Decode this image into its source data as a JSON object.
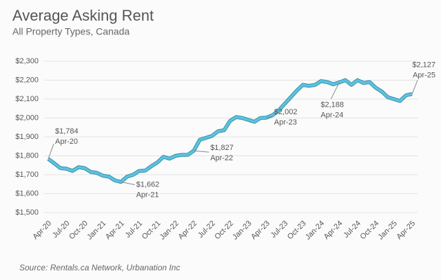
{
  "chart_data": {
    "type": "line",
    "title": "Average Asking Rent",
    "subtitle": "All Property Types, Canada",
    "source": "Source: Rentals.ca Network, Urbanation Inc",
    "categories": [
      "Apr-20",
      null,
      null,
      "Jul-20",
      null,
      null,
      "Oct-20",
      null,
      null,
      "Jan-21",
      null,
      null,
      "Apr-21",
      null,
      null,
      "Jul-21",
      null,
      null,
      "Oct-21",
      null,
      null,
      "Jan-22",
      null,
      null,
      "Apr-22",
      null,
      null,
      "Jul-22",
      null,
      null,
      "Oct-22",
      null,
      null,
      "Jan-23",
      null,
      null,
      "Apr-23",
      null,
      null,
      "Jul-23",
      null,
      null,
      "Oct-23",
      null,
      null,
      "Jan-24",
      null,
      null,
      "Apr-24",
      null,
      null,
      "Jul-24",
      null,
      null,
      "Oct-24",
      null,
      null,
      "Jan-25",
      null,
      null,
      "Apr-25"
    ],
    "series": [
      {
        "name": "Average Asking Rent",
        "color": "#5cc3e0",
        "values": [
          1784,
          1760,
          1735,
          1732,
          1720,
          1740,
          1735,
          1715,
          1710,
          1695,
          1690,
          1670,
          1662,
          1690,
          1700,
          1720,
          1722,
          1745,
          1765,
          1795,
          1785,
          1800,
          1805,
          1805,
          1827,
          1885,
          1895,
          1905,
          1930,
          1935,
          1985,
          2005,
          2000,
          1990,
          1980,
          2000,
          2002,
          2015,
          2040,
          2075,
          2110,
          2145,
          2175,
          2170,
          2175,
          2195,
          2190,
          2178,
          2188,
          2200,
          2175,
          2200,
          2185,
          2190,
          2160,
          2140,
          2110,
          2100,
          2090,
          2120,
          2127
        ],
        "value_labels": [
          "$1,784",
          null,
          null,
          null,
          null,
          null,
          null,
          null,
          null,
          null,
          null,
          null,
          "$1,662",
          null,
          null,
          null,
          null,
          null,
          null,
          null,
          null,
          null,
          null,
          null,
          "$1,827",
          null,
          null,
          null,
          null,
          null,
          null,
          null,
          null,
          null,
          null,
          null,
          "$2,002",
          null,
          null,
          null,
          null,
          null,
          null,
          null,
          null,
          null,
          null,
          null,
          "$2,188",
          null,
          null,
          null,
          null,
          null,
          null,
          null,
          null,
          null,
          null,
          null,
          "$2,127"
        ]
      }
    ],
    "ylim": [
      1500,
      2300
    ],
    "yticks": [
      {
        "value": 1500,
        "label": "$1,500"
      },
      {
        "value": 1600,
        "label": "$1,600"
      },
      {
        "value": 1700,
        "label": "$1,700"
      },
      {
        "value": 1800,
        "label": "$1,800"
      },
      {
        "value": 1900,
        "label": "$1,900"
      },
      {
        "value": 2000,
        "label": "$2,000"
      },
      {
        "value": 2100,
        "label": "$2,100"
      },
      {
        "value": 2200,
        "label": "$2,200"
      },
      {
        "value": 2300,
        "label": "$2,300"
      }
    ],
    "grid": true
  }
}
